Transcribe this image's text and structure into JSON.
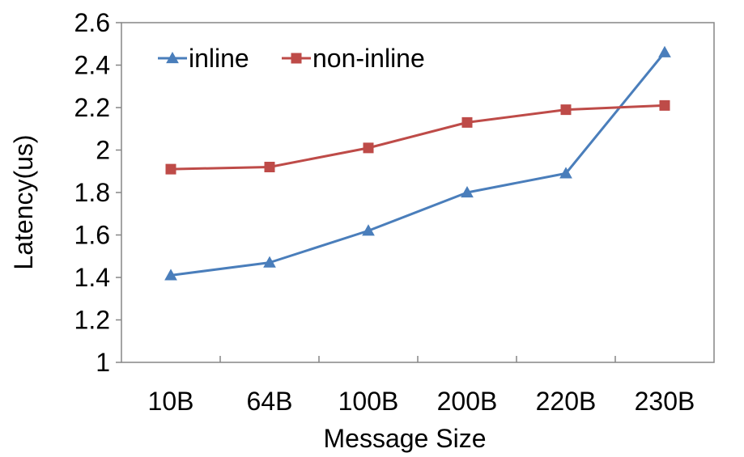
{
  "chart_data": {
    "type": "line",
    "title": "",
    "xlabel": "Message Size",
    "ylabel": "Latency(us)",
    "categories": [
      "10B",
      "64B",
      "100B",
      "200B",
      "220B",
      "230B"
    ],
    "ylim": [
      1,
      2.6
    ],
    "yticks": [
      "1",
      "1.2",
      "1.4",
      "1.6",
      "1.8",
      "2",
      "2.2",
      "2.4",
      "2.6"
    ],
    "grid": false,
    "legend_position": "top-left",
    "series": [
      {
        "name": "inline",
        "values": [
          1.41,
          1.47,
          1.62,
          1.8,
          1.89,
          2.46
        ],
        "color": "#4a7ebb",
        "marker": "triangle"
      },
      {
        "name": "non-inline",
        "values": [
          1.91,
          1.92,
          2.01,
          2.13,
          2.19,
          2.21
        ],
        "color": "#be4b48",
        "marker": "square"
      }
    ]
  }
}
